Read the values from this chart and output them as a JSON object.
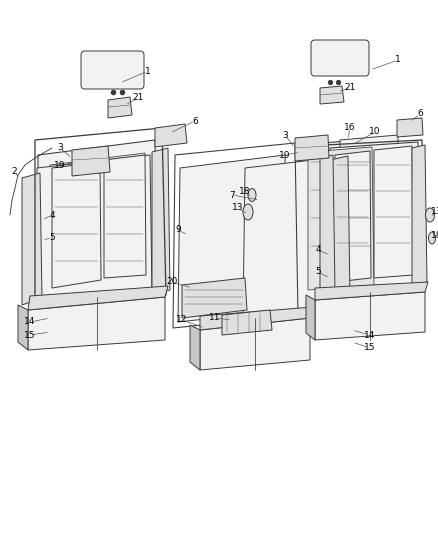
{
  "bg_color": "#ffffff",
  "line_color": "#3a3a3a",
  "label_color": "#000000",
  "label_fontsize": 6.5,
  "lw": 0.7,
  "fig_width": 4.38,
  "fig_height": 5.33,
  "dpi": 100
}
